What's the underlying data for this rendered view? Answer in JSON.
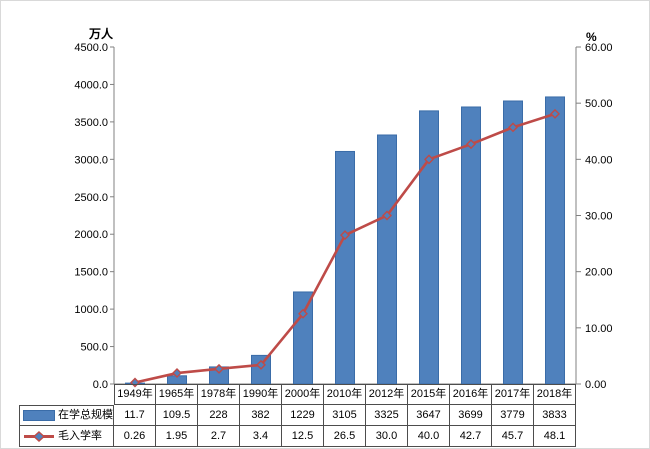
{
  "chart_data": {
    "type": "combo-bar-line",
    "title": "",
    "categories": [
      "1949年",
      "1965年",
      "1978年",
      "1990年",
      "2000年",
      "2010年",
      "2012年",
      "2015年",
      "2016年",
      "2017年",
      "2018年"
    ],
    "series": [
      {
        "name": "在学总规模",
        "chart": "bar",
        "axis": "left",
        "values": [
          11.7,
          109.5,
          228,
          382,
          1229,
          3105,
          3325,
          3647,
          3699,
          3779,
          3833
        ],
        "display_values": [
          "11.7",
          "109.5",
          "228",
          "382",
          "1229",
          "3105",
          "3325",
          "3647",
          "3699",
          "3779",
          "3833"
        ],
        "color": "#4F81BD",
        "border_color": "#3A6CA8"
      },
      {
        "name": "毛入学率",
        "chart": "line",
        "axis": "right",
        "values": [
          0.26,
          1.95,
          2.7,
          3.4,
          12.5,
          26.5,
          30.0,
          40.0,
          42.7,
          45.7,
          48.1
        ],
        "display_values": [
          "0.26",
          "1.95",
          "2.7",
          "3.4",
          "12.5",
          "26.5",
          "30.0",
          "40.0",
          "42.7",
          "45.7",
          "48.1"
        ],
        "color": "#BE4B48",
        "marker_fill": "#4F81BD"
      }
    ],
    "left_axis": {
      "title": "万人",
      "min": 0,
      "max": 4500,
      "step": 500,
      "tick_labels": [
        "0.0",
        "500.0",
        "1000.0",
        "1500.0",
        "2000.0",
        "2500.0",
        "3000.0",
        "3500.0",
        "4000.0",
        "4500.0"
      ]
    },
    "right_axis": {
      "title": "%",
      "min": 0,
      "max": 60,
      "step": 10,
      "tick_labels": [
        "0.00",
        "10.00",
        "20.00",
        "30.00",
        "40.00",
        "50.00",
        "60.00"
      ]
    },
    "grid": false,
    "legend_position": "table-left",
    "axis_color": "#808080",
    "table_border_color": "#4d4d4d",
    "text_color": "#000000"
  }
}
